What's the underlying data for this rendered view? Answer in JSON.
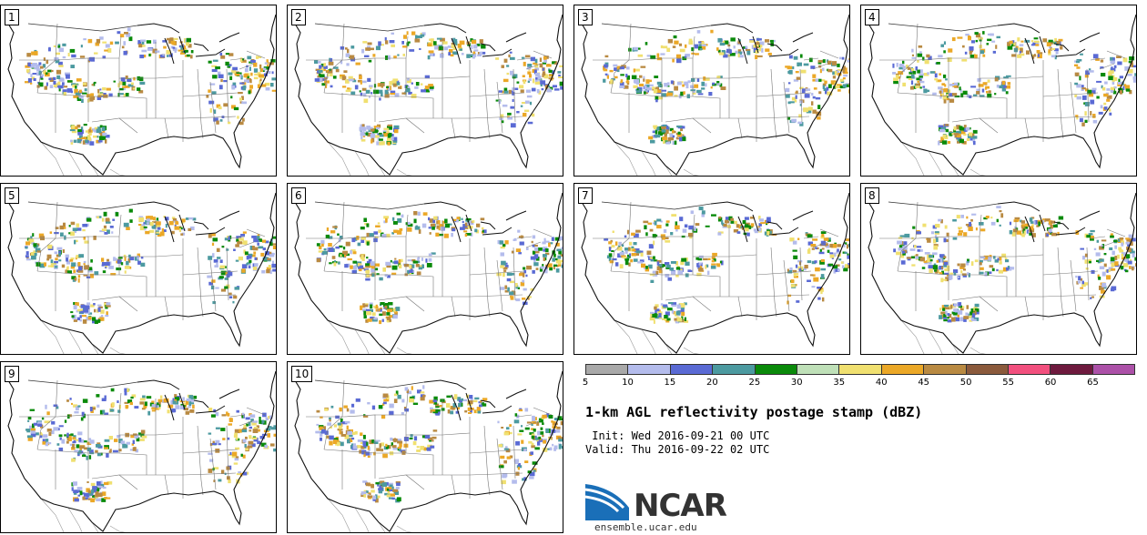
{
  "panels": [
    {
      "label": "1"
    },
    {
      "label": "2"
    },
    {
      "label": "3"
    },
    {
      "label": "4"
    },
    {
      "label": "5"
    },
    {
      "label": "6"
    },
    {
      "label": "7"
    },
    {
      "label": "8"
    },
    {
      "label": "9"
    },
    {
      "label": "10"
    }
  ],
  "colorbar": {
    "colors": [
      "#a9a9a9",
      "#b4bcec",
      "#5a6ad4",
      "#4c9aa0",
      "#0a8a0a",
      "#bfe0b8",
      "#f0e070",
      "#eba827",
      "#b98a42",
      "#8b5a3c",
      "#f2507e",
      "#6e1a3e",
      "#ac51a8"
    ],
    "ticks": [
      "5",
      "10",
      "15",
      "20",
      "25",
      "30",
      "35",
      "40",
      "45",
      "50",
      "55",
      "60",
      "65"
    ]
  },
  "title": "1-km AGL reflectivity postage stamp (dBZ)",
  "init": " Init: Wed 2016-09-21 00 UTC",
  "valid": "Valid: Thu 2016-09-22 02 UTC",
  "logo": {
    "text": "NCAR",
    "color_blue": "#1a6fb8"
  },
  "url": "ensemble.ucar.edu"
}
